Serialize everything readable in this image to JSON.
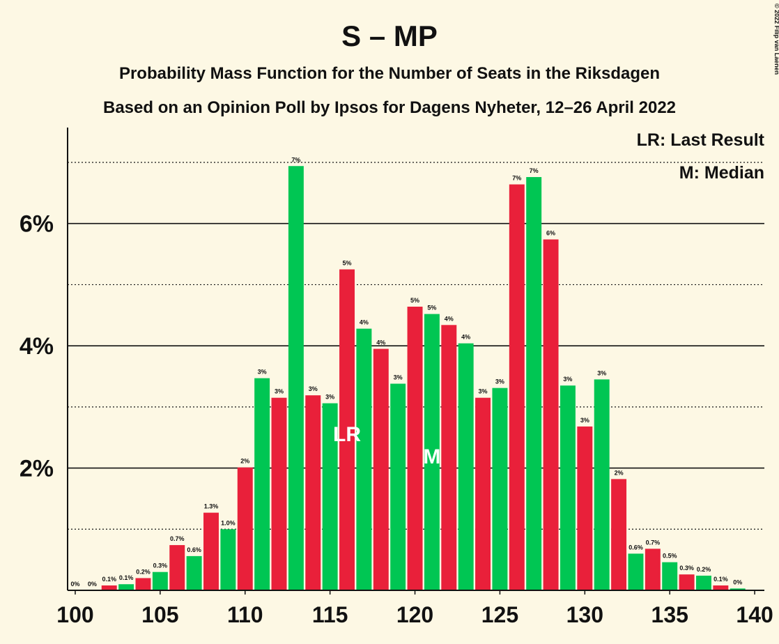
{
  "chart_data": {
    "type": "bar",
    "title": "S – MP",
    "subtitle": "Probability Mass Function for the Number of Seats in the Riksdagen",
    "subtitle2": "Based on an Opinion Poll by Ipsos for Dagens Nyheter, 12–26 April 2022",
    "copyright": "© 2022 Filip van Laenen",
    "legend": [
      "LR: Last Result",
      "M: Median"
    ],
    "x": [
      100,
      101,
      102,
      103,
      104,
      105,
      106,
      107,
      108,
      109,
      110,
      111,
      112,
      113,
      114,
      115,
      116,
      117,
      118,
      119,
      120,
      121,
      122,
      123,
      124,
      125,
      126,
      127,
      128,
      129,
      130,
      131,
      132,
      133,
      134,
      135,
      136,
      137,
      138,
      139
    ],
    "values": [
      0,
      0,
      0.08,
      0.1,
      0.2,
      0.3,
      0.74,
      0.56,
      1.27,
      1.0,
      2.01,
      3.47,
      3.15,
      6.94,
      3.19,
      3.06,
      5.25,
      4.28,
      3.95,
      3.38,
      4.64,
      4.52,
      4.34,
      4.04,
      3.15,
      3.31,
      6.64,
      6.76,
      5.74,
      3.35,
      2.68,
      3.45,
      1.82,
      0.6,
      0.68,
      0.46,
      0.26,
      0.24,
      0.08,
      0.03
    ],
    "value_labels": [
      "0%",
      "0%",
      "0.1%",
      "0.1%",
      "0.2%",
      "0.3%",
      "0.7%",
      "0.6%",
      "1.3%",
      "1.0%",
      "2%",
      "3%",
      "3%",
      "7%",
      "3%",
      "3%",
      "5%",
      "4%",
      "4%",
      "3%",
      "5%",
      "5%",
      "4%",
      "4%",
      "3%",
      "3%",
      "7%",
      "7%",
      "6%",
      "3%",
      "3%",
      "3%",
      "2%",
      "0.6%",
      "0.7%",
      "0.5%",
      "0.3%",
      "0.2%",
      "0.1%",
      "0%"
    ],
    "colors": [
      "#e9203a",
      "#00c653"
    ],
    "annotations": [
      {
        "x": 116,
        "text": "LR"
      },
      {
        "x": 121,
        "text": "M"
      }
    ],
    "xlim": [
      99.55,
      140.57
    ],
    "xticks": [
      100,
      105,
      110,
      115,
      120,
      125,
      130,
      135,
      140
    ],
    "ylim": [
      0,
      7.57
    ],
    "yticks": [
      {
        "value": 2,
        "label": "2%"
      },
      {
        "value": 4,
        "label": "4%"
      },
      {
        "value": 6,
        "label": "6%"
      }
    ],
    "minor_yticks": [
      1,
      3,
      5,
      7
    ],
    "grid": true
  }
}
